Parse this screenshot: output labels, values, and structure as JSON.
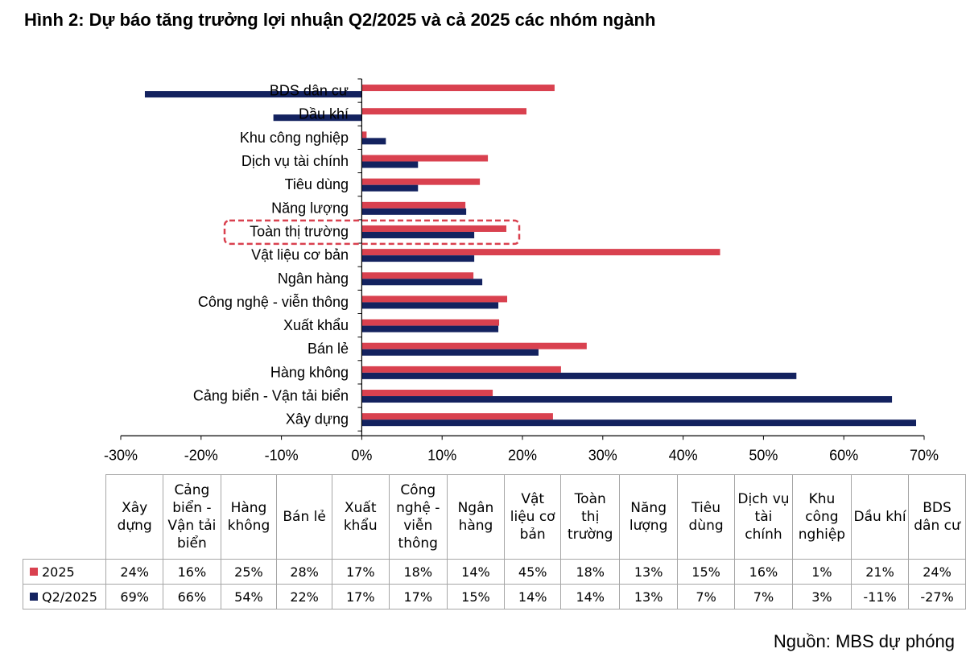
{
  "title": "Hình 2: Dự báo tăng trưởng lợi nhuận Q2/2025 và cả 2025 các nhóm ngành",
  "source": "Nguồn: MBS dự phóng",
  "colors": {
    "s2025": "#d9414f",
    "sq2": "#13225f",
    "highlight": "#d9414f"
  },
  "chart_data": {
    "type": "bar",
    "orientation": "horizontal",
    "xlim": [
      -30,
      70
    ],
    "x_ticks": [
      -30,
      -20,
      -10,
      0,
      10,
      20,
      30,
      40,
      50,
      60,
      70
    ],
    "x_tick_labels": [
      "-30%",
      "-20%",
      "-10%",
      "0%",
      "10%",
      "20%",
      "30%",
      "40%",
      "50%",
      "60%",
      "70%"
    ],
    "categories": [
      "BDS dân cư",
      "Dầu khí",
      "Khu công nghiệp",
      "Dịch vụ tài chính",
      "Tiêu dùng",
      "Năng lượng",
      "Toàn thị trường",
      "Vật liệu cơ bản",
      "Ngân hàng",
      "Công nghệ - viễn thông",
      "Xuất khẩu",
      "Bán lẻ",
      "Hàng không",
      "Cảng biển - Vận tải biển",
      "Xây dựng"
    ],
    "highlighted_category": "Toàn thị trường",
    "series": [
      {
        "name": "2025",
        "color": "#d9414f",
        "values": [
          24,
          20.5,
          0.6,
          15.7,
          14.7,
          12.9,
          18,
          44.6,
          13.9,
          18.1,
          17.1,
          28,
          24.8,
          16.3,
          23.8
        ]
      },
      {
        "name": "Q2/2025",
        "color": "#13225f",
        "values": [
          -27,
          -11,
          3,
          7,
          7,
          13,
          14,
          14,
          15,
          17,
          17,
          22,
          54.1,
          66,
          69
        ]
      }
    ]
  },
  "table": {
    "headers": [
      [
        "Xây",
        "dựng"
      ],
      [
        "Cảng",
        "biển -",
        "Vận tải",
        "biển"
      ],
      [
        "Hàng",
        "không"
      ],
      [
        "Bán lẻ"
      ],
      [
        "Xuất",
        "khẩu"
      ],
      [
        "Công",
        "nghệ -",
        "viễn",
        "thông"
      ],
      [
        "Ngân",
        "hàng"
      ],
      [
        "Vật",
        "liệu cơ",
        "bản"
      ],
      [
        "Toàn",
        "thị",
        "trường"
      ],
      [
        "Năng",
        "lượng"
      ],
      [
        "Tiêu",
        "dùng"
      ],
      [
        "Dịch vụ",
        "tài",
        "chính"
      ],
      [
        "Khu",
        "công",
        "nghiệp"
      ],
      [
        "Dầu khí"
      ],
      [
        "BDS",
        "dân cư"
      ]
    ],
    "rows": [
      {
        "label": "2025",
        "color": "#d9414f",
        "cells": [
          "24%",
          "16%",
          "25%",
          "28%",
          "17%",
          "18%",
          "14%",
          "45%",
          "18%",
          "13%",
          "15%",
          "16%",
          "1%",
          "21%",
          "24%"
        ]
      },
      {
        "label": "Q2/2025",
        "color": "#13225f",
        "cells": [
          "69%",
          "66%",
          "54%",
          "22%",
          "17%",
          "17%",
          "15%",
          "14%",
          "14%",
          "13%",
          "7%",
          "7%",
          "3%",
          "-11%",
          "-27%"
        ]
      }
    ]
  }
}
